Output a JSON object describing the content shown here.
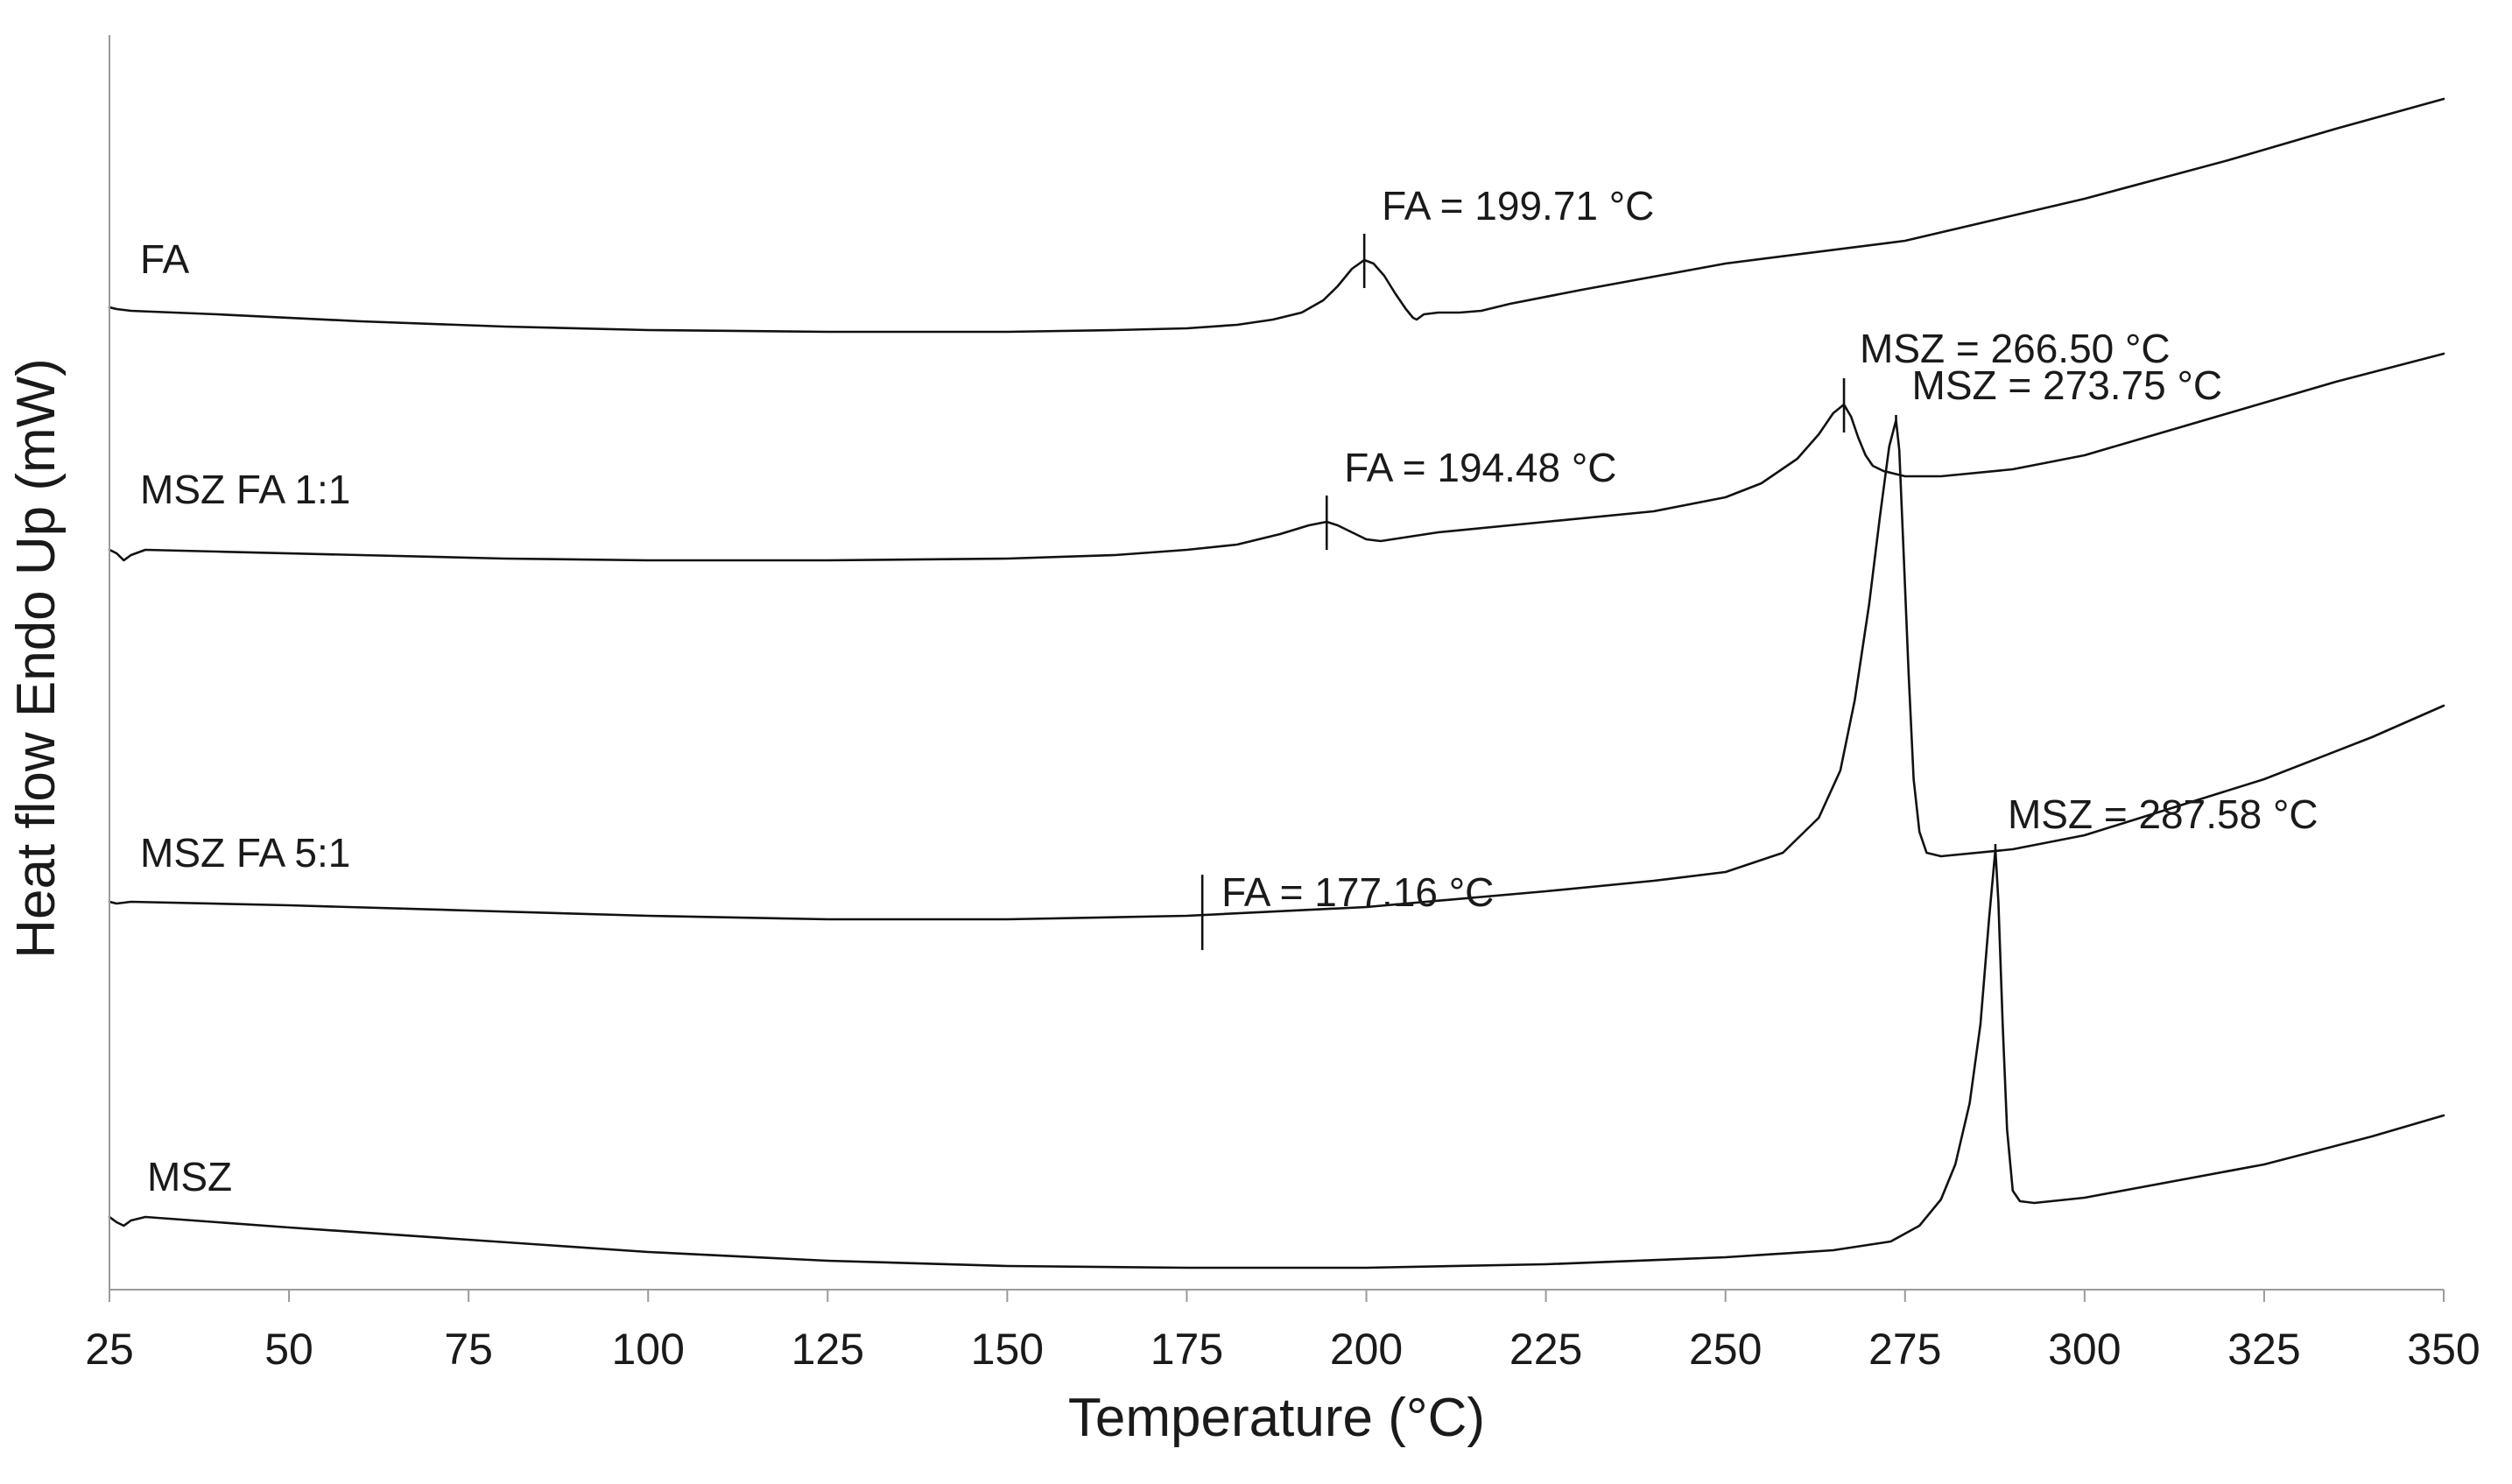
{
  "chart_data": {
    "type": "line",
    "xlabel": "Temperature (°C)",
    "ylabel": "Heat flow Endo Up (mW)",
    "xlim": [
      25,
      350
    ],
    "xticks": [
      25,
      50,
      75,
      100,
      125,
      150,
      175,
      200,
      225,
      250,
      275,
      300,
      325,
      350
    ],
    "y_axis_ticks_shown": false,
    "grid": false,
    "legend": "none (series labelled directly on the plot)",
    "series": [
      {
        "name": "FA",
        "curve": [
          [
            25,
            0
          ],
          [
            26,
            -1
          ],
          [
            28,
            -2
          ],
          [
            40,
            -4
          ],
          [
            60,
            -8
          ],
          [
            80,
            -11
          ],
          [
            100,
            -13
          ],
          [
            125,
            -14
          ],
          [
            150,
            -14
          ],
          [
            165,
            -13
          ],
          [
            175,
            -12
          ],
          [
            182,
            -10
          ],
          [
            187,
            -7
          ],
          [
            191,
            -3
          ],
          [
            194,
            4
          ],
          [
            196,
            12
          ],
          [
            198,
            22
          ],
          [
            199.71,
            27
          ],
          [
            201,
            25
          ],
          [
            202.5,
            18
          ],
          [
            204,
            8
          ],
          [
            205.5,
            -1
          ],
          [
            206.5,
            -6
          ],
          [
            207,
            -7
          ],
          [
            208,
            -4
          ],
          [
            210,
            -3
          ],
          [
            213,
            -3
          ],
          [
            216,
            -2
          ],
          [
            220,
            2
          ],
          [
            230,
            10
          ],
          [
            250,
            25
          ],
          [
            275,
            38
          ],
          [
            300,
            62
          ],
          [
            320,
            84
          ],
          [
            335,
            102
          ],
          [
            350,
            119
          ]
        ],
        "annotations": [
          {
            "x": 199.71,
            "text": "FA = 199.71 °C"
          }
        ]
      },
      {
        "name": "MSZ FA 1:1",
        "curve": [
          [
            25,
            0
          ],
          [
            26,
            -2
          ],
          [
            27,
            -6
          ],
          [
            28,
            -3
          ],
          [
            30,
            0
          ],
          [
            40,
            -1
          ],
          [
            60,
            -3
          ],
          [
            80,
            -5
          ],
          [
            100,
            -6
          ],
          [
            125,
            -6
          ],
          [
            150,
            -5
          ],
          [
            165,
            -3
          ],
          [
            175,
            0
          ],
          [
            182,
            3
          ],
          [
            188,
            9
          ],
          [
            192,
            14
          ],
          [
            194.48,
            16
          ],
          [
            196,
            14
          ],
          [
            198,
            10
          ],
          [
            200,
            6
          ],
          [
            202,
            5
          ],
          [
            210,
            10
          ],
          [
            225,
            16
          ],
          [
            240,
            22
          ],
          [
            250,
            30
          ],
          [
            255,
            38
          ],
          [
            260,
            52
          ],
          [
            263,
            66
          ],
          [
            265,
            78
          ],
          [
            266.5,
            83
          ],
          [
            267.5,
            76
          ],
          [
            268.5,
            64
          ],
          [
            269.5,
            54
          ],
          [
            270.5,
            48
          ],
          [
            272,
            45
          ],
          [
            275,
            42
          ],
          [
            280,
            42
          ],
          [
            290,
            46
          ],
          [
            300,
            54
          ],
          [
            320,
            78
          ],
          [
            335,
            96
          ],
          [
            350,
            112
          ]
        ],
        "annotations": [
          {
            "x": 194.48,
            "text": "FA = 194.48 °C"
          },
          {
            "x": 266.5,
            "text": "MSZ = 266.50 °C"
          }
        ]
      },
      {
        "name": "MSZ FA 5:1",
        "curve": [
          [
            25,
            0
          ],
          [
            26,
            -1
          ],
          [
            28,
            0
          ],
          [
            50,
            -2
          ],
          [
            75,
            -5
          ],
          [
            100,
            -8
          ],
          [
            125,
            -10
          ],
          [
            150,
            -10
          ],
          [
            175,
            -8
          ],
          [
            200,
            -3
          ],
          [
            225,
            6
          ],
          [
            240,
            12
          ],
          [
            250,
            17
          ],
          [
            258,
            28
          ],
          [
            263,
            48
          ],
          [
            266,
            75
          ],
          [
            268,
            115
          ],
          [
            270,
            170
          ],
          [
            271.5,
            220
          ],
          [
            272.8,
            260
          ],
          [
            273.75,
            275
          ],
          [
            274.2,
            258
          ],
          [
            274.8,
            200
          ],
          [
            275.5,
            130
          ],
          [
            276.2,
            70
          ],
          [
            277,
            40
          ],
          [
            278,
            28
          ],
          [
            280,
            26
          ],
          [
            290,
            30
          ],
          [
            300,
            38
          ],
          [
            325,
            70
          ],
          [
            340,
            94
          ],
          [
            350,
            112
          ]
        ],
        "annotations": [
          {
            "x": 177.16,
            "text": "FA = 177.16 °C"
          },
          {
            "x": 273.75,
            "text": "MSZ = 273.75 °C"
          }
        ]
      },
      {
        "name": "MSZ",
        "curve": [
          [
            25,
            0
          ],
          [
            26,
            -3
          ],
          [
            27,
            -5
          ],
          [
            28,
            -2
          ],
          [
            30,
            0
          ],
          [
            50,
            -6
          ],
          [
            75,
            -13
          ],
          [
            100,
            -20
          ],
          [
            125,
            -25
          ],
          [
            150,
            -28
          ],
          [
            175,
            -29
          ],
          [
            200,
            -29
          ],
          [
            225,
            -27
          ],
          [
            250,
            -23
          ],
          [
            265,
            -19
          ],
          [
            273,
            -14
          ],
          [
            277,
            -5
          ],
          [
            280,
            10
          ],
          [
            282,
            30
          ],
          [
            284,
            65
          ],
          [
            285.5,
            110
          ],
          [
            286.7,
            170
          ],
          [
            287.58,
            210
          ],
          [
            288,
            180
          ],
          [
            288.6,
            110
          ],
          [
            289.2,
            50
          ],
          [
            290,
            15
          ],
          [
            291,
            9
          ],
          [
            293,
            8
          ],
          [
            300,
            11
          ],
          [
            325,
            30
          ],
          [
            340,
            46
          ],
          [
            350,
            58
          ]
        ],
        "annotations": [
          {
            "x": 287.58,
            "text": "MSZ = 287.58 °C"
          }
        ]
      }
    ]
  }
}
